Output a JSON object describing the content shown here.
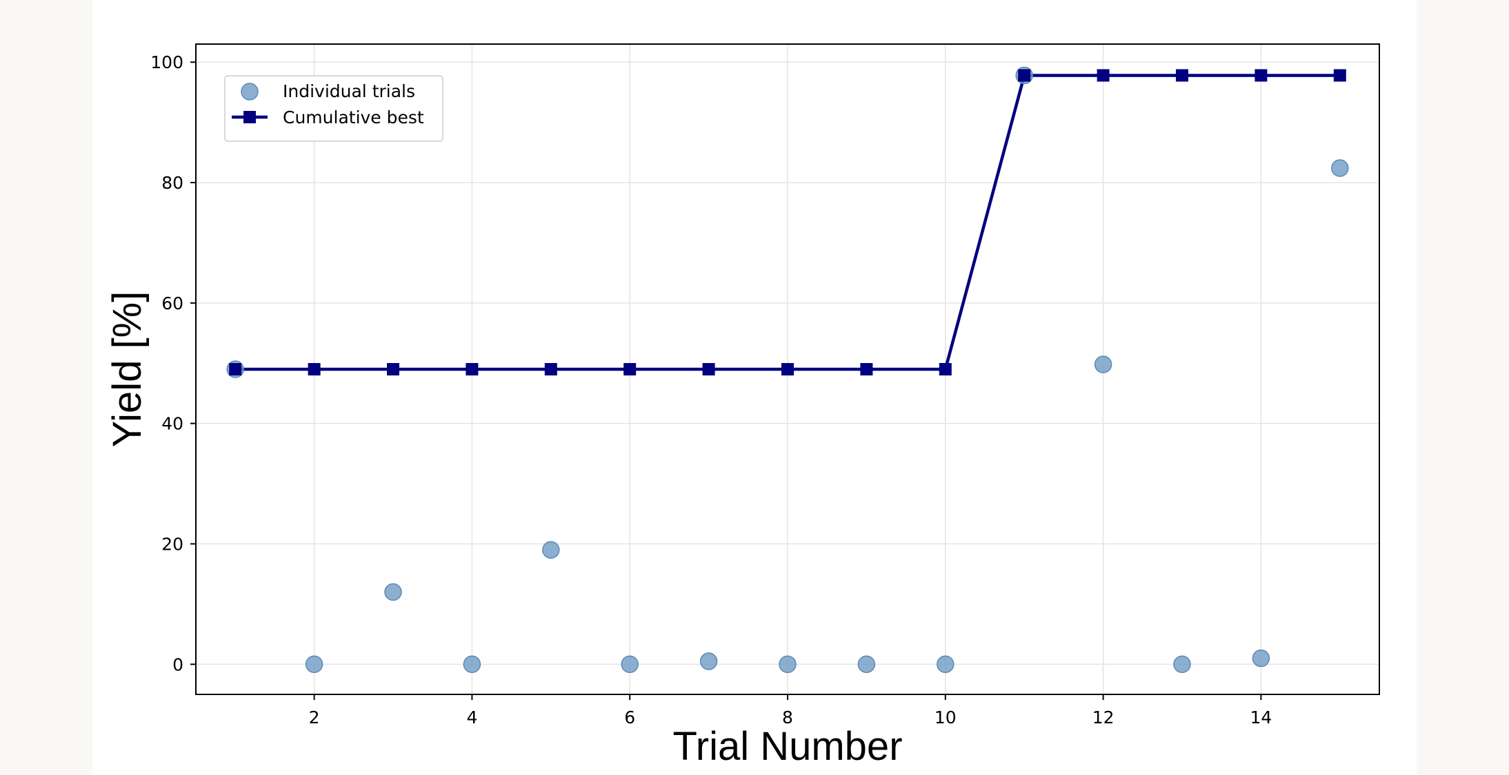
{
  "chart_data": {
    "type": "scatter",
    "xlabel": "Trial Number",
    "ylabel": "Yield [%]",
    "xlim": [
      0.5,
      15.5
    ],
    "ylim": [
      -5,
      103
    ],
    "xticks": [
      2,
      4,
      6,
      8,
      10,
      12,
      14
    ],
    "yticks": [
      0,
      20,
      40,
      60,
      80,
      100
    ],
    "grid": true,
    "legend_position": "top-left",
    "series": [
      {
        "name": "Individual trials",
        "kind": "scatter",
        "color": "#6f9bc4",
        "x": [
          1,
          2,
          3,
          4,
          5,
          6,
          7,
          8,
          9,
          10,
          11,
          12,
          13,
          14,
          15
        ],
        "y": [
          49,
          0,
          12,
          0,
          19,
          0,
          0.5,
          0,
          0,
          0,
          97.8,
          49.8,
          0,
          1,
          82.4
        ]
      },
      {
        "name": "Cumulative best",
        "kind": "line",
        "color": "#000080",
        "x": [
          1,
          2,
          3,
          4,
          5,
          6,
          7,
          8,
          9,
          10,
          11,
          12,
          13,
          14,
          15
        ],
        "y": [
          49,
          49,
          49,
          49,
          49,
          49,
          49,
          49,
          49,
          49,
          97.8,
          97.8,
          97.8,
          97.8,
          97.8
        ]
      }
    ]
  }
}
